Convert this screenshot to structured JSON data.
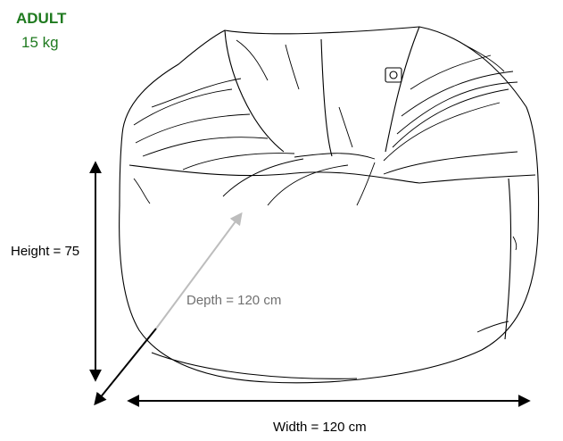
{
  "product": {
    "size_name": "ADULT",
    "weight": "15 kg"
  },
  "dimensions": {
    "height_label": "Height = 75",
    "depth_label": "Depth = 120 cm",
    "width_label": "Width = 120 cm"
  },
  "colors": {
    "size_text": "#1f7a1f",
    "depth_text": "#707070",
    "depth_arrow": "#bdbdbd",
    "outline": "#000000"
  }
}
